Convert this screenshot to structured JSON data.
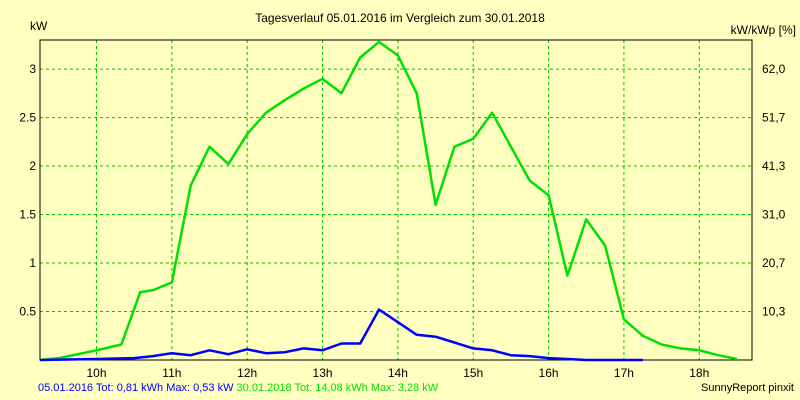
{
  "chart_data": {
    "type": "line",
    "title": "Tagesverlauf 05.01.2016 im Vergleich zum 30.01.2018",
    "ylabel_left": "kW",
    "ylabel_right": "kW/kWp [%]",
    "x_ticks": [
      "10h",
      "11h",
      "12h",
      "13h",
      "14h",
      "15h",
      "16h",
      "17h",
      "18h"
    ],
    "x_tick_values": [
      10,
      11,
      12,
      13,
      14,
      15,
      16,
      17,
      18
    ],
    "xlim": [
      9.25,
      18.7
    ],
    "y_ticks": [
      "0.5",
      "1",
      "1.5",
      "2",
      "2.5",
      "3"
    ],
    "y_tick_values": [
      0.5,
      1,
      1.5,
      2,
      2.5,
      3
    ],
    "y_right_ticks": [
      "10,3",
      "20,7",
      "31,0",
      "41,3",
      "51,7",
      "62,0"
    ],
    "ylim": [
      0,
      3.3
    ],
    "grid": true,
    "background": "#ffffc0",
    "series": [
      {
        "color": "#00e000",
        "x": [
          9.25,
          9.5,
          9.75,
          10.0,
          10.33,
          10.58,
          10.75,
          11.0,
          11.25,
          11.5,
          11.75,
          12.0,
          12.25,
          12.5,
          12.75,
          13.0,
          13.25,
          13.5,
          13.75,
          14.0,
          14.25,
          14.5,
          14.75,
          15.0,
          15.25,
          15.5,
          15.75,
          16.0,
          16.25,
          16.5,
          16.75,
          17.0,
          17.25,
          17.5,
          17.75,
          18.0,
          18.25,
          18.5
        ],
        "values": [
          0.0,
          0.02,
          0.06,
          0.1,
          0.16,
          0.7,
          0.72,
          0.8,
          1.8,
          2.2,
          2.02,
          2.33,
          2.55,
          2.68,
          2.8,
          2.9,
          2.75,
          3.12,
          3.28,
          3.14,
          2.75,
          1.6,
          2.2,
          2.28,
          2.55,
          2.2,
          1.85,
          1.7,
          0.87,
          1.45,
          1.18,
          0.42,
          0.25,
          0.16,
          0.12,
          0.1,
          0.05,
          0.01
        ]
      },
      {
        "color": "#0000ff",
        "x": [
          9.25,
          10.0,
          10.5,
          10.75,
          11.0,
          11.25,
          11.5,
          11.75,
          12.0,
          12.25,
          12.5,
          12.75,
          13.0,
          13.25,
          13.5,
          13.75,
          14.0,
          14.25,
          14.5,
          14.75,
          15.0,
          15.25,
          15.5,
          15.75,
          16.0,
          16.25,
          16.5,
          16.75,
          17.0,
          17.25
        ],
        "values": [
          0.0,
          0.01,
          0.02,
          0.04,
          0.07,
          0.05,
          0.1,
          0.06,
          0.11,
          0.07,
          0.08,
          0.12,
          0.1,
          0.17,
          0.17,
          0.52,
          0.39,
          0.26,
          0.24,
          0.18,
          0.12,
          0.1,
          0.05,
          0.04,
          0.02,
          0.01,
          0.0,
          0.0,
          0.0,
          0.0
        ]
      }
    ]
  },
  "footer": {
    "series1_label": "05.01.2016 Tot: 0,81 kWh Max: 0,53 kW",
    "series1_color": "#0000ff",
    "series2_label": "30.01.2018 Tot: 14,08 kWh Max: 3,28 kW",
    "series2_color": "#00e000",
    "credit": "SunnyReport pinxit"
  }
}
